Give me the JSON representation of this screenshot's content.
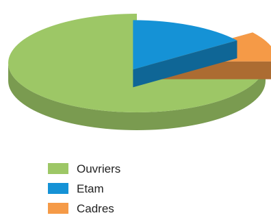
{
  "chart_data": {
    "type": "pie",
    "style": "3d-exploded",
    "categories": [
      "Ouvriers",
      "Etam",
      "Cadres"
    ],
    "values": [
      75,
      15,
      10
    ],
    "colors": [
      "#9DC766",
      "#1592D6",
      "#F59A47"
    ],
    "legend_position": "bottom-left"
  }
}
